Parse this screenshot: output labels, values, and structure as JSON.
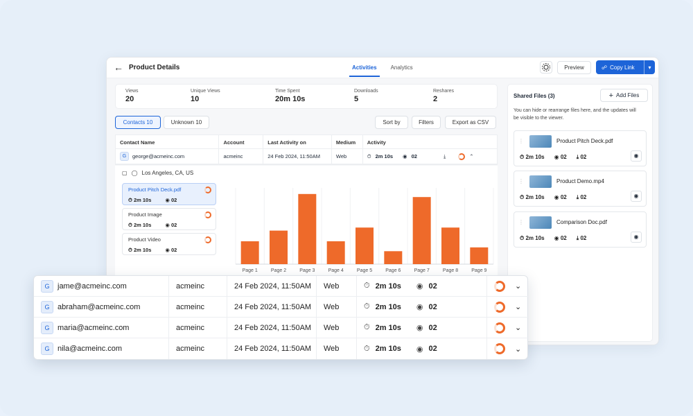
{
  "header": {
    "title": "Product Details",
    "tabs": [
      "Activities",
      "Analytics"
    ],
    "preview_label": "Preview",
    "copy_link_label": "Copy Link"
  },
  "stats": [
    {
      "label": "Views",
      "value": "20"
    },
    {
      "label": "Unique Views",
      "value": "10"
    },
    {
      "label": "Time Spent",
      "value": "20m 10s"
    },
    {
      "label": "Downloads",
      "value": "5"
    },
    {
      "label": "Reshares",
      "value": "2"
    }
  ],
  "filters": {
    "contacts": "Contacts 10",
    "unknown": "Unknown 10",
    "sort": "Sort by",
    "filters": "Filters",
    "export": "Export as CSV"
  },
  "table": {
    "columns": [
      "Contact Name",
      "Account",
      "Last Activity on",
      "Medium",
      "Activity"
    ],
    "first_row": {
      "email": "george@acmeinc.com",
      "account": "acmeinc",
      "date": "24 Feb 2024, 11:50AM",
      "medium": "Web",
      "time": "2m 10s",
      "views": "02"
    }
  },
  "detail": {
    "location": "Los Angeles, CA, US",
    "files": [
      {
        "name": "Product Pitch Deck.pdf",
        "time": "2m 10s",
        "views": "02"
      },
      {
        "name": "Product Image",
        "time": "2m 10s",
        "views": "02"
      },
      {
        "name": "Product Video",
        "time": "2m 10s",
        "views": "02"
      }
    ]
  },
  "chart_data": {
    "type": "bar",
    "categories": [
      "Page 1",
      "Page 2",
      "Page 3",
      "Page 4",
      "Page 5",
      "Page 6",
      "Page 7",
      "Page 8",
      "Page 9"
    ],
    "values": [
      30,
      44,
      92,
      30,
      48,
      17,
      88,
      48,
      22
    ],
    "ylim": [
      0,
      100
    ],
    "color": "#ee6a2a",
    "grid": true
  },
  "shared": {
    "title": "Shared Files (3)",
    "add_label": "Add Files",
    "note": "You can hide or rearrange files here, and the updates will be visible to the viewer.",
    "files": [
      {
        "name": "Product Pitch Deck.pdf",
        "time": "2m 10s",
        "views": "02",
        "downloads": "02"
      },
      {
        "name": "Product Demo.mp4",
        "time": "2m 10s",
        "views": "02",
        "downloads": "02"
      },
      {
        "name": "Comparison Doc.pdf",
        "time": "2m 10s",
        "views": "02",
        "downloads": "02"
      }
    ]
  },
  "contacts": [
    {
      "initial": "G",
      "email": "jame@acmeinc.com",
      "account": "acmeinc",
      "date": "24 Feb 2024, 11:50AM",
      "medium": "Web",
      "time": "2m 10s",
      "views": "02"
    },
    {
      "initial": "G",
      "email": "abraham@acmeinc.com",
      "account": "acmeinc",
      "date": "24 Feb 2024, 11:50AM",
      "medium": "Web",
      "time": "2m 10s",
      "views": "02"
    },
    {
      "initial": "G",
      "email": "maria@acmeinc.com",
      "account": "acmeinc",
      "date": "24 Feb 2024, 11:50AM",
      "medium": "Web",
      "time": "2m 10s",
      "views": "02"
    },
    {
      "initial": "G",
      "email": "nila@acmeinc.com",
      "account": "acmeinc",
      "date": "24 Feb 2024, 11:50AM",
      "medium": "Web",
      "time": "2m 10s",
      "views": "02"
    }
  ]
}
